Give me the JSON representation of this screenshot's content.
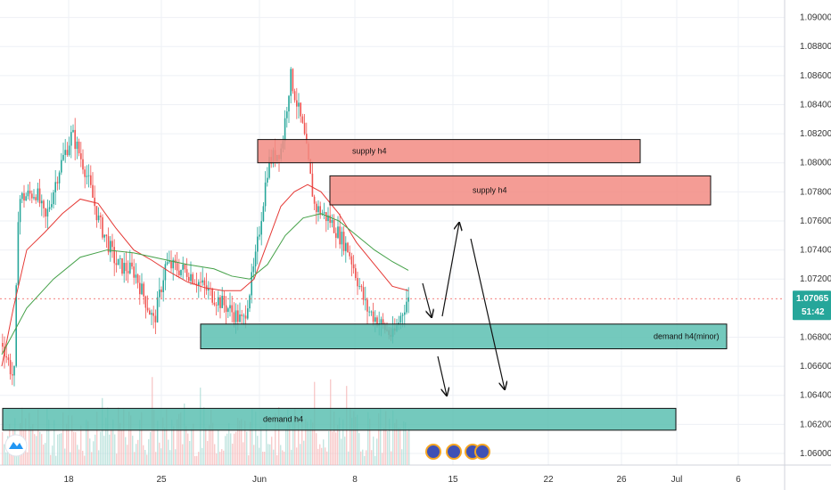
{
  "chart_data": {
    "type": "candlestick",
    "symbol_hint": "",
    "y_axis": {
      "ticks": [
        "1.09000",
        "1.08800",
        "1.08600",
        "1.08400",
        "1.08200",
        "1.08000",
        "1.07800",
        "1.07600",
        "1.07400",
        "1.07200",
        "1.06800",
        "1.06600",
        "1.06400",
        "1.06200",
        "1.06000"
      ],
      "range": [
        1.0592,
        1.0912
      ]
    },
    "x_axis": {
      "ticks": [
        "18",
        "25",
        "Jun",
        "8",
        "15",
        "22",
        "26",
        "Jul",
        "6"
      ]
    },
    "current_price": "1.07065",
    "countdown": "51:42",
    "zones": [
      {
        "label": "supply h4",
        "top": 1.0816,
        "bottom": 1.08,
        "kind": "supply"
      },
      {
        "label": "supply h4",
        "top": 1.0791,
        "bottom": 1.0771,
        "kind": "supply"
      },
      {
        "label": "demand h4(minor)",
        "top": 1.0689,
        "bottom": 1.0672,
        "kind": "demand"
      },
      {
        "label": "demand h4",
        "top": 1.0631,
        "bottom": 1.0616,
        "kind": "demand"
      }
    ],
    "series": [
      {
        "values": [
          1.066,
          1.078,
          1.077,
          1.076,
          1.079,
          1.08,
          1.081,
          1.082,
          1.081,
          1.079,
          1.076,
          1.074,
          1.073,
          1.072,
          1.0715,
          1.073,
          1.072,
          1.07,
          1.071,
          1.072,
          1.0715,
          1.07,
          1.0705,
          1.072,
          1.08,
          1.084,
          1.086,
          1.081,
          1.077,
          1.076,
          1.075,
          1.074,
          1.072,
          1.071,
          1.07,
          1.0695,
          1.069,
          1.07,
          1.0715
        ]
      },
      {
        "values": [
          1.0665,
          1.07,
          1.074,
          1.075,
          1.0765,
          1.0775,
          1.078,
          1.0772,
          1.076,
          1.075,
          1.074,
          1.0732,
          1.0725,
          1.0718,
          1.0714,
          1.0712,
          1.071,
          1.0708,
          1.0712,
          1.0715,
          1.076,
          1.078,
          1.0785,
          1.078,
          1.077,
          1.076,
          1.0745,
          1.073,
          1.0718,
          1.071,
          1.0707
        ]
      },
      {
        "values": [
          1.068,
          1.0705,
          1.0725,
          1.0735,
          1.074,
          1.0738,
          1.0735,
          1.0732,
          1.0728,
          1.0726,
          1.0724,
          1.0722,
          1.072,
          1.0718,
          1.0722,
          1.0735,
          1.0755,
          1.0765,
          1.0762,
          1.0755,
          1.0745,
          1.0735,
          1.0728,
          1.0724
        ]
      }
    ],
    "arrows": 4
  }
}
